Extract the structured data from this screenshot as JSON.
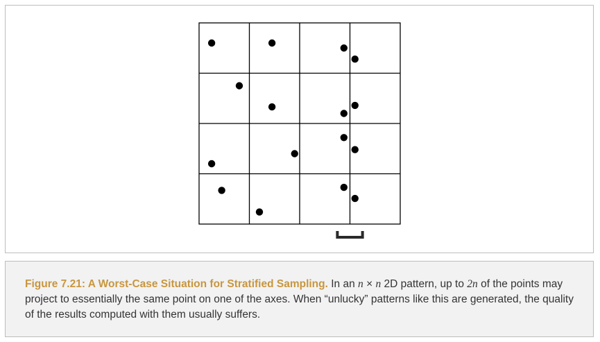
{
  "figure": {
    "grid_size": 4,
    "points_per_stratum": 1,
    "points": [
      {
        "col": 0,
        "row": 0,
        "u": 0.25,
        "v": 0.4
      },
      {
        "col": 1,
        "row": 0,
        "u": 0.45,
        "v": 0.4
      },
      {
        "col": 2,
        "row": 0,
        "u": 0.88,
        "v": 0.5
      },
      {
        "col": 3,
        "row": 0,
        "u": 0.1,
        "v": 0.72
      },
      {
        "col": 0,
        "row": 1,
        "u": 0.8,
        "v": 0.25
      },
      {
        "col": 1,
        "row": 1,
        "u": 0.45,
        "v": 0.67
      },
      {
        "col": 2,
        "row": 1,
        "u": 0.88,
        "v": 0.8
      },
      {
        "col": 3,
        "row": 1,
        "u": 0.1,
        "v": 0.64
      },
      {
        "col": 0,
        "row": 2,
        "u": 0.25,
        "v": 0.8
      },
      {
        "col": 1,
        "row": 2,
        "u": 0.9,
        "v": 0.6
      },
      {
        "col": 2,
        "row": 2,
        "u": 0.88,
        "v": 0.28
      },
      {
        "col": 3,
        "row": 2,
        "u": 0.1,
        "v": 0.52
      },
      {
        "col": 0,
        "row": 3,
        "u": 0.45,
        "v": 0.33
      },
      {
        "col": 1,
        "row": 3,
        "u": 0.2,
        "v": 0.76
      },
      {
        "col": 2,
        "row": 3,
        "u": 0.88,
        "v": 0.27
      },
      {
        "col": 3,
        "row": 3,
        "u": 0.1,
        "v": 0.49
      }
    ],
    "colors": {
      "line": "#000000",
      "dot": "#000000"
    }
  },
  "caption": {
    "title": "Figure 7.21: A Worst-Case Situation for Stratified Sampling.",
    "text_1": " In an ",
    "math_n1": "n",
    "times": " × ",
    "math_n2": "n",
    "text_2": " 2D pattern, up to ",
    "math_2n": "2n",
    "text_3": " of the points may project to essentially the same point on one of the axes. When “unlucky” patterns like this are generated, the quality of the results computed with them usually suffers."
  },
  "colors": {
    "title": "#c8963e",
    "panel_border": "#bdbdbd",
    "caption_background": "#f2f2f2"
  }
}
